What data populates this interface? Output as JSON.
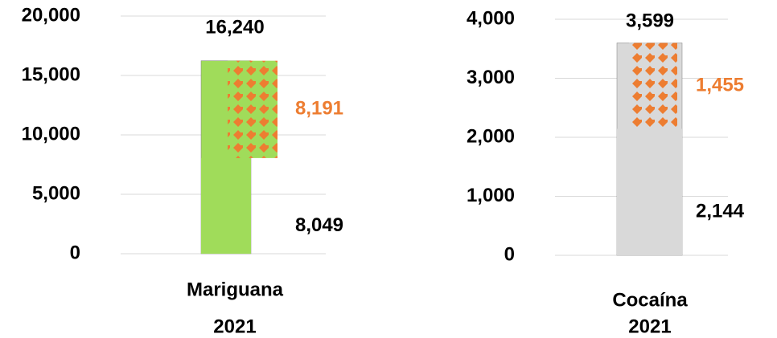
{
  "chart_data": [
    {
      "type": "bar",
      "category": "Mariguana",
      "year": "2021",
      "ylim": [
        0,
        20000
      ],
      "yticks": [
        0,
        {
          "value": 5000,
          "label": "5,000"
        },
        {
          "value": 10000,
          "label": "10,000"
        },
        {
          "value": 15000,
          "label": "15,000"
        },
        {
          "value": 20000,
          "label": "20,000"
        }
      ],
      "grid": true,
      "totals": [
        16240
      ],
      "total_labels": [
        "16,240"
      ],
      "color": "#a0dc5a",
      "series": [
        {
          "color": "#000000",
          "values": [
            8049
          ],
          "value_labels": [
            "8,049"
          ]
        },
        {
          "color": "#ed7d31",
          "values": [
            8191
          ],
          "value_labels": [
            "8,191"
          ],
          "pattern": true
        }
      ]
    },
    {
      "type": "bar",
      "category": "Cocaína",
      "year": "2021",
      "ylim": [
        0,
        4000
      ],
      "yticks": [
        0,
        {
          "value": 1000,
          "label": "1,000"
        },
        {
          "value": 2000,
          "label": "2,000"
        },
        {
          "value": 3000,
          "label": "3,000"
        },
        {
          "value": 4000,
          "label": "4,000"
        }
      ],
      "grid": true,
      "totals": [
        3599
      ],
      "total_labels": [
        "3,599"
      ],
      "color": "#d9d9d9",
      "series": [
        {
          "color": "#000000",
          "values": [
            2144
          ],
          "value_labels": [
            "2,144"
          ]
        },
        {
          "color": "#ed7d31",
          "values": [
            1455
          ],
          "value_labels": [
            "1,455"
          ],
          "pattern": true
        }
      ]
    }
  ]
}
